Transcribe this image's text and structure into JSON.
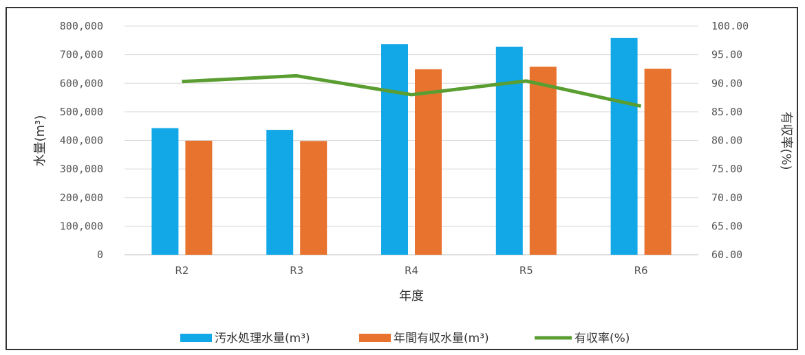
{
  "chart_data": {
    "type": "bar",
    "categories": [
      "R2",
      "R3",
      "R4",
      "R5",
      "R6"
    ],
    "series": [
      {
        "name": "汚水処理水量(m³)",
        "type": "bar",
        "axis": "left",
        "color": "#12a7e6",
        "values": [
          443000,
          437000,
          737000,
          728000,
          759000
        ]
      },
      {
        "name": "年間有収水量(m³)",
        "type": "bar",
        "axis": "left",
        "color": "#e8732f",
        "values": [
          399000,
          398000,
          649000,
          658000,
          651000
        ]
      },
      {
        "name": "有収率(%)",
        "type": "line",
        "axis": "right",
        "color": "#5a9e32",
        "values": [
          90.3,
          91.3,
          88.0,
          90.4,
          86.0
        ]
      }
    ],
    "xlabel": "年度",
    "ylabel": "水量(m³)",
    "y2label": "有収率(%)",
    "ylim": [
      0,
      800000
    ],
    "y2lim": [
      60,
      100
    ],
    "yticks": [
      "0",
      "100,000",
      "200,000",
      "300,000",
      "400,000",
      "500,000",
      "600,000",
      "700,000",
      "800,000"
    ],
    "y2ticks": [
      "60.00",
      "65.00",
      "70.00",
      "75.00",
      "80.00",
      "85.00",
      "90.00",
      "95.00",
      "100.00"
    ],
    "grid": true,
    "legend": "bottom"
  }
}
